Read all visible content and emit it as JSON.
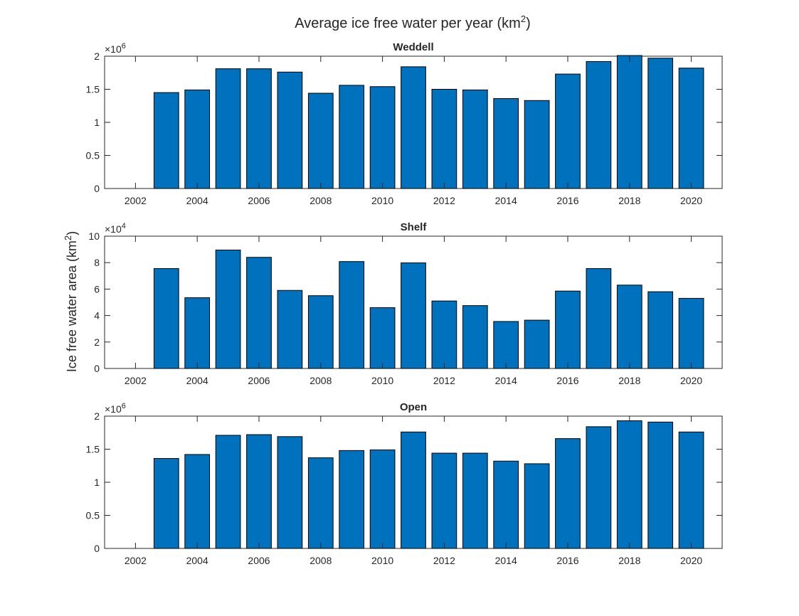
{
  "figure": {
    "title": "Average ice free water per year",
    "title_unit_base": "(km",
    "title_unit_exp": "2",
    "title_unit_close": ")",
    "ylabel_base": "Ice free water area (km",
    "ylabel_exp": "2",
    "ylabel_close": ")"
  },
  "colors": {
    "bar": "#0072BD",
    "edge": "#000000",
    "axis": "#262626"
  },
  "chart_data": [
    {
      "type": "bar",
      "title": "Weddell",
      "x": [
        2003,
        2004,
        2005,
        2006,
        2007,
        2008,
        2009,
        2010,
        2011,
        2012,
        2013,
        2014,
        2015,
        2016,
        2017,
        2018,
        2019,
        2020
      ],
      "values": [
        1450000,
        1490000,
        1810000,
        1810000,
        1760000,
        1440000,
        1560000,
        1540000,
        1840000,
        1500000,
        1490000,
        1360000,
        1330000,
        1730000,
        1920000,
        2010000,
        1970000,
        1820000
      ],
      "xlim": [
        2001,
        2021
      ],
      "ylim": [
        0,
        2000000
      ],
      "xticks": [
        2002,
        2004,
        2006,
        2008,
        2010,
        2012,
        2014,
        2016,
        2018,
        2020
      ],
      "yticks": [
        0,
        500000,
        1000000,
        1500000,
        2000000
      ],
      "ytick_labels": [
        "0",
        "0.5",
        "1",
        "1.5",
        "2"
      ],
      "exponent_base": "×10",
      "exponent_power": "6"
    },
    {
      "type": "bar",
      "title": "Shelf",
      "x": [
        2003,
        2004,
        2005,
        2006,
        2007,
        2008,
        2009,
        2010,
        2011,
        2012,
        2013,
        2014,
        2015,
        2016,
        2017,
        2018,
        2019,
        2020
      ],
      "values": [
        75500,
        53500,
        89500,
        84000,
        59000,
        55000,
        80800,
        46000,
        79800,
        51000,
        47500,
        35500,
        36500,
        58500,
        75500,
        63000,
        58000,
        53000
      ],
      "xlim": [
        2001,
        2021
      ],
      "ylim": [
        0,
        100000
      ],
      "xticks": [
        2002,
        2004,
        2006,
        2008,
        2010,
        2012,
        2014,
        2016,
        2018,
        2020
      ],
      "yticks": [
        0,
        20000,
        40000,
        60000,
        80000,
        100000
      ],
      "ytick_labels": [
        "0",
        "2",
        "4",
        "6",
        "8",
        "10"
      ],
      "exponent_base": "×10",
      "exponent_power": "4"
    },
    {
      "type": "bar",
      "title": "Open",
      "x": [
        2003,
        2004,
        2005,
        2006,
        2007,
        2008,
        2009,
        2010,
        2011,
        2012,
        2013,
        2014,
        2015,
        2016,
        2017,
        2018,
        2019,
        2020
      ],
      "values": [
        1360000,
        1420000,
        1710000,
        1720000,
        1690000,
        1370000,
        1480000,
        1490000,
        1760000,
        1440000,
        1440000,
        1320000,
        1280000,
        1660000,
        1840000,
        1930000,
        1910000,
        1760000
      ],
      "xlim": [
        2001,
        2021
      ],
      "ylim": [
        0,
        2000000
      ],
      "xticks": [
        2002,
        2004,
        2006,
        2008,
        2010,
        2012,
        2014,
        2016,
        2018,
        2020
      ],
      "yticks": [
        0,
        500000,
        1000000,
        1500000,
        2000000
      ],
      "ytick_labels": [
        "0",
        "0.5",
        "1",
        "1.5",
        "2"
      ],
      "exponent_base": "×10",
      "exponent_power": "6"
    }
  ]
}
